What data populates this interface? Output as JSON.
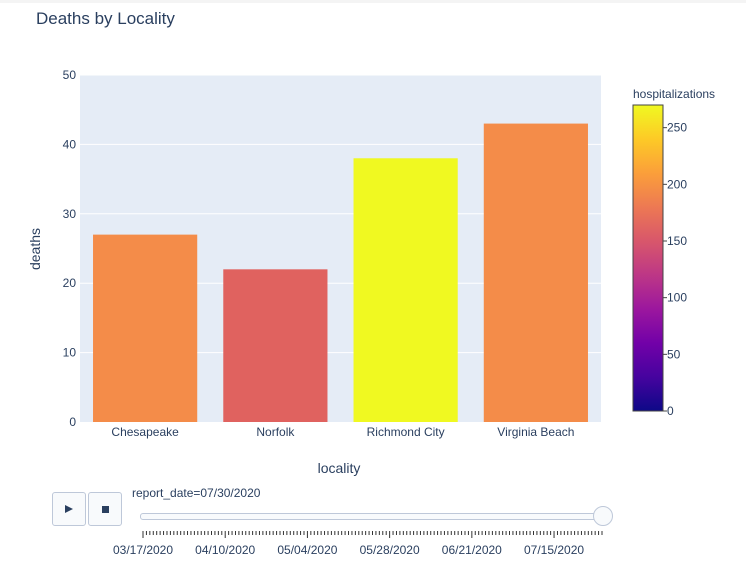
{
  "chart_data": {
    "type": "bar",
    "title": "Deaths by Locality",
    "xlabel": "locality",
    "ylabel": "deaths",
    "ylim": [
      0,
      50
    ],
    "yticks": [
      0,
      10,
      20,
      30,
      40,
      50
    ],
    "grid": true,
    "categories": [
      "Chesapeake",
      "Norfolk",
      "Richmond City",
      "Virginia Beach"
    ],
    "values": [
      27,
      22,
      38,
      43
    ],
    "hospitalizations": [
      205,
      165,
      270,
      205
    ],
    "bar_colors": [
      "#f48c49",
      "#e0625f",
      "#f0f921",
      "#f48c49"
    ],
    "colorbar": {
      "title": "hospitalizations",
      "range": [
        0,
        270
      ],
      "ticks": [
        0,
        50,
        100,
        150,
        200,
        250
      ],
      "colorscale": [
        "#0d0887",
        "#46039f",
        "#7201a8",
        "#9c179e",
        "#bd3786",
        "#d8576b",
        "#ed7953",
        "#fb9f3a",
        "#fdca26",
        "#f0f921"
      ]
    }
  },
  "animation": {
    "play_icon": "play-icon",
    "stop_icon": "stop-icon",
    "slider_label": "report_date=07/30/2020",
    "slider_position": 1.0,
    "date_labels": [
      "03/17/2020",
      "04/10/2020",
      "05/04/2020",
      "05/28/2020",
      "06/21/2020",
      "07/15/2020"
    ]
  }
}
